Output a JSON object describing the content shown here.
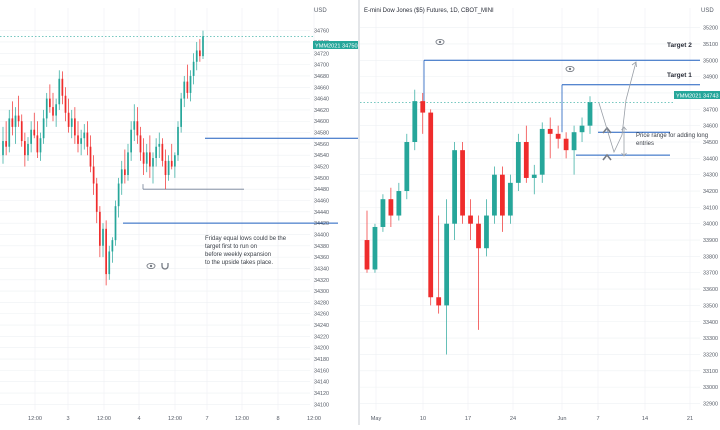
{
  "colors": {
    "up": "#26a69a",
    "down": "#ef2c2c",
    "level": "#1e5fbf",
    "price_tag": "#26a69a",
    "grid": "#eef0f3",
    "axis_text": "#555b66",
    "divider": "#e3e5e8"
  },
  "chart_data": [
    {
      "type": "candlestick",
      "title": "",
      "panel": "left",
      "ylim": [
        34090,
        34800
      ],
      "x_tick_labels": [
        "12:00",
        "3",
        "12:00",
        "4",
        "12:00",
        "7",
        "12:00",
        "8",
        "12:00"
      ],
      "y_tick_labels": [
        "34760",
        "34740",
        "34720",
        "34700",
        "34680",
        "34660",
        "34640",
        "34620",
        "34600",
        "34580",
        "34560",
        "34540",
        "34520",
        "34500",
        "34480",
        "34460",
        "34440",
        "34420",
        "34400",
        "34380",
        "34360",
        "34340",
        "34320",
        "34300",
        "34280",
        "34260",
        "34240",
        "34220",
        "34200",
        "34180",
        "34160",
        "34140",
        "34120",
        "34100"
      ],
      "y_unit": "USD",
      "price_tag": "YMM2021",
      "last_price": "34750",
      "ohlc": [
        [
          34540,
          34590,
          34525,
          34565
        ],
        [
          34565,
          34600,
          34540,
          34555
        ],
        [
          34555,
          34620,
          34545,
          34605
        ],
        [
          34605,
          34635,
          34575,
          34590
        ],
        [
          34590,
          34625,
          34560,
          34610
        ],
        [
          34610,
          34645,
          34590,
          34600
        ],
        [
          34600,
          34612,
          34555,
          34565
        ],
        [
          34565,
          34580,
          34520,
          34540
        ],
        [
          34540,
          34572,
          34530,
          34560
        ],
        [
          34560,
          34600,
          34545,
          34585
        ],
        [
          34585,
          34615,
          34570,
          34575
        ],
        [
          34575,
          34600,
          34535,
          34545
        ],
        [
          34545,
          34580,
          34530,
          34570
        ],
        [
          34570,
          34620,
          34560,
          34605
        ],
        [
          34605,
          34650,
          34590,
          34640
        ],
        [
          34640,
          34665,
          34615,
          34625
        ],
        [
          34625,
          34650,
          34600,
          34610
        ],
        [
          34610,
          34640,
          34590,
          34630
        ],
        [
          34630,
          34690,
          34620,
          34675
        ],
        [
          34675,
          34688,
          34630,
          34645
        ],
        [
          34645,
          34660,
          34600,
          34615
        ],
        [
          34615,
          34640,
          34580,
          34590
        ],
        [
          34590,
          34620,
          34570,
          34605
        ],
        [
          34605,
          34625,
          34560,
          34575
        ],
        [
          34575,
          34600,
          34545,
          34560
        ],
        [
          34560,
          34585,
          34540,
          34570
        ],
        [
          34570,
          34595,
          34550,
          34580
        ],
        [
          34580,
          34600,
          34540,
          34555
        ],
        [
          34555,
          34575,
          34510,
          34520
        ],
        [
          34520,
          34540,
          34470,
          34490
        ],
        [
          34490,
          34500,
          34420,
          34440
        ],
        [
          34440,
          34450,
          34360,
          34380
        ],
        [
          34380,
          34420,
          34360,
          34410
        ],
        [
          34410,
          34425,
          34310,
          34330
        ],
        [
          34330,
          34380,
          34320,
          34370
        ],
        [
          34370,
          34395,
          34350,
          34390
        ],
        [
          34390,
          34460,
          34380,
          34450
        ],
        [
          34450,
          34500,
          34430,
          34490
        ],
        [
          34490,
          34530,
          34470,
          34515
        ],
        [
          34515,
          34550,
          34490,
          34505
        ],
        [
          34505,
          34560,
          34495,
          34545
        ],
        [
          34545,
          34600,
          34530,
          34585
        ],
        [
          34585,
          34630,
          34565,
          34600
        ],
        [
          34600,
          34625,
          34560,
          34575
        ],
        [
          34575,
          34590,
          34530,
          34545
        ],
        [
          34545,
          34570,
          34505,
          34525
        ],
        [
          34525,
          34560,
          34510,
          34545
        ],
        [
          34545,
          34575,
          34500,
          34520
        ],
        [
          34520,
          34545,
          34490,
          34535
        ],
        [
          34535,
          34570,
          34520,
          34555
        ],
        [
          34555,
          34580,
          34535,
          34560
        ],
        [
          34560,
          34570,
          34520,
          34530
        ],
        [
          34530,
          34550,
          34480,
          34505
        ],
        [
          34505,
          34540,
          34495,
          34530
        ],
        [
          34530,
          34560,
          34515,
          34520
        ],
        [
          34520,
          34545,
          34500,
          34540
        ],
        [
          34540,
          34600,
          34530,
          34590
        ],
        [
          34590,
          34650,
          34580,
          34640
        ],
        [
          34640,
          34680,
          34625,
          34670
        ],
        [
          34670,
          34700,
          34640,
          34650
        ],
        [
          34650,
          34690,
          34635,
          34680
        ],
        [
          34680,
          34720,
          34665,
          34705
        ],
        [
          34705,
          34740,
          34690,
          34725
        ],
        [
          34725,
          34745,
          34705,
          34715
        ],
        [
          34715,
          34760,
          34710,
          34750
        ]
      ],
      "levels": [
        {
          "value": 34570,
          "kind": "horizontal-line"
        },
        {
          "value": 34480,
          "kind": "horizontal-line"
        },
        {
          "value": 34420,
          "kind": "horizontal-line"
        }
      ],
      "annotation": "Friday equal lows could be the target first to run on before weekly expansion to the upside takes place."
    },
    {
      "type": "candlestick",
      "title": "E-mini Dow Jones ($5) Futures, 1D, CBOT_MINI",
      "panel": "right",
      "ylim": [
        32860,
        35320
      ],
      "x_tick_labels": [
        "May",
        "10",
        "17",
        "24",
        "Jun",
        "7",
        "14",
        "21"
      ],
      "y_tick_labels": [
        "35200",
        "35100",
        "35000",
        "34900",
        "34800",
        "34700",
        "34600",
        "34500",
        "34400",
        "34300",
        "34200",
        "34100",
        "34000",
        "33900",
        "33800",
        "33700",
        "33600",
        "33500",
        "33400",
        "33300",
        "33200",
        "33100",
        "33000",
        "32900"
      ],
      "y_unit": "USD",
      "price_tag": "YMM2021",
      "last_price": "34743",
      "ohlc": [
        [
          33900,
          34080,
          33700,
          33720
        ],
        [
          33720,
          34000,
          33700,
          33980
        ],
        [
          33980,
          34180,
          33950,
          34150
        ],
        [
          34150,
          34220,
          33980,
          34050
        ],
        [
          34050,
          34250,
          34020,
          34200
        ],
        [
          34200,
          34550,
          34150,
          34500
        ],
        [
          34500,
          34820,
          34450,
          34750
        ],
        [
          34750,
          34800,
          34550,
          34680
        ],
        [
          34680,
          34700,
          33500,
          33550
        ],
        [
          33550,
          34050,
          33450,
          33500
        ],
        [
          33500,
          34150,
          33200,
          34000
        ],
        [
          34000,
          34500,
          33900,
          34450
        ],
        [
          34450,
          34500,
          34000,
          34050
        ],
        [
          34050,
          34150,
          33900,
          34000
        ],
        [
          34000,
          34050,
          33350,
          33850
        ],
        [
          33850,
          34150,
          33800,
          34050
        ],
        [
          34050,
          34350,
          34000,
          34300
        ],
        [
          34300,
          34350,
          33950,
          34050
        ],
        [
          34050,
          34300,
          34000,
          34250
        ],
        [
          34250,
          34550,
          34200,
          34500
        ],
        [
          34500,
          34600,
          34250,
          34280
        ],
        [
          34280,
          34360,
          34180,
          34300
        ],
        [
          34300,
          34620,
          34250,
          34580
        ],
        [
          34580,
          34650,
          34400,
          34550
        ],
        [
          34550,
          34600,
          34460,
          34520
        ],
        [
          34520,
          34560,
          34400,
          34450
        ],
        [
          34450,
          34600,
          34300,
          34560
        ],
        [
          34560,
          34650,
          34500,
          34600
        ],
        [
          34600,
          34780,
          34550,
          34743
        ]
      ],
      "levels": [
        {
          "value": 35000,
          "kind": "horizontal-line",
          "label": "Target 2"
        },
        {
          "value": 34850,
          "kind": "horizontal-line",
          "label": "Target 1"
        },
        {
          "value": 34560,
          "kind": "horizontal-line"
        },
        {
          "value": 34420,
          "kind": "horizontal-line"
        }
      ],
      "annotation": "Price range for adding long entries"
    }
  ]
}
